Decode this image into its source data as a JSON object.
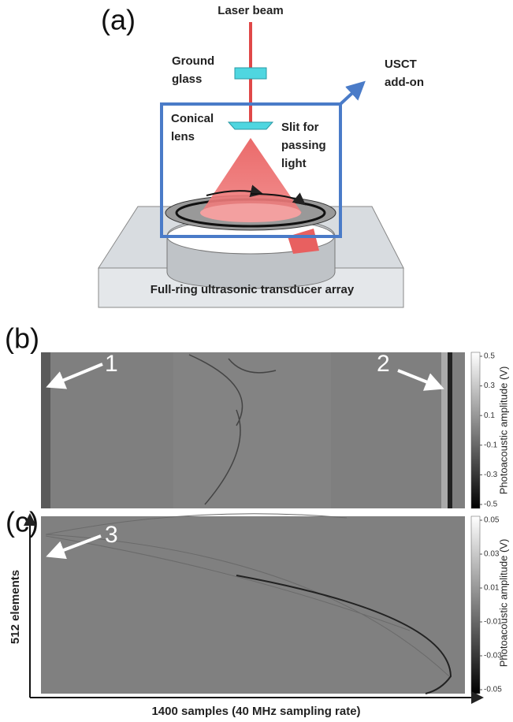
{
  "panel_a": {
    "label": "(a)",
    "laser_beam": "Laser beam",
    "ground_glass": [
      "Ground",
      "glass"
    ],
    "usct_addon": [
      "USCT",
      "add-on"
    ],
    "conical_lens": [
      "Conical",
      "lens"
    ],
    "slit": [
      "Slit for",
      "passing",
      "light"
    ],
    "transducer": "Full-ring ultrasonic transducer array"
  },
  "panel_b": {
    "label": "(b)",
    "markers": [
      "1",
      "2"
    ],
    "colorbar_title": "Photoacoustic amplitude (V)",
    "colorbar_ticks": [
      0.5,
      0.3,
      0.1,
      -0.1,
      -0.3,
      -0.5
    ]
  },
  "panel_c": {
    "label": "(c)",
    "markers": [
      "3"
    ],
    "colorbar_title": "Photoacoustic amplitude (V)",
    "colorbar_ticks": [
      0.05,
      0.03,
      0.01,
      -0.01,
      -0.03,
      -0.05
    ],
    "y_axis_label": "512 elements",
    "x_axis_label": "1400 samples (40 MHz sampling rate)"
  }
}
